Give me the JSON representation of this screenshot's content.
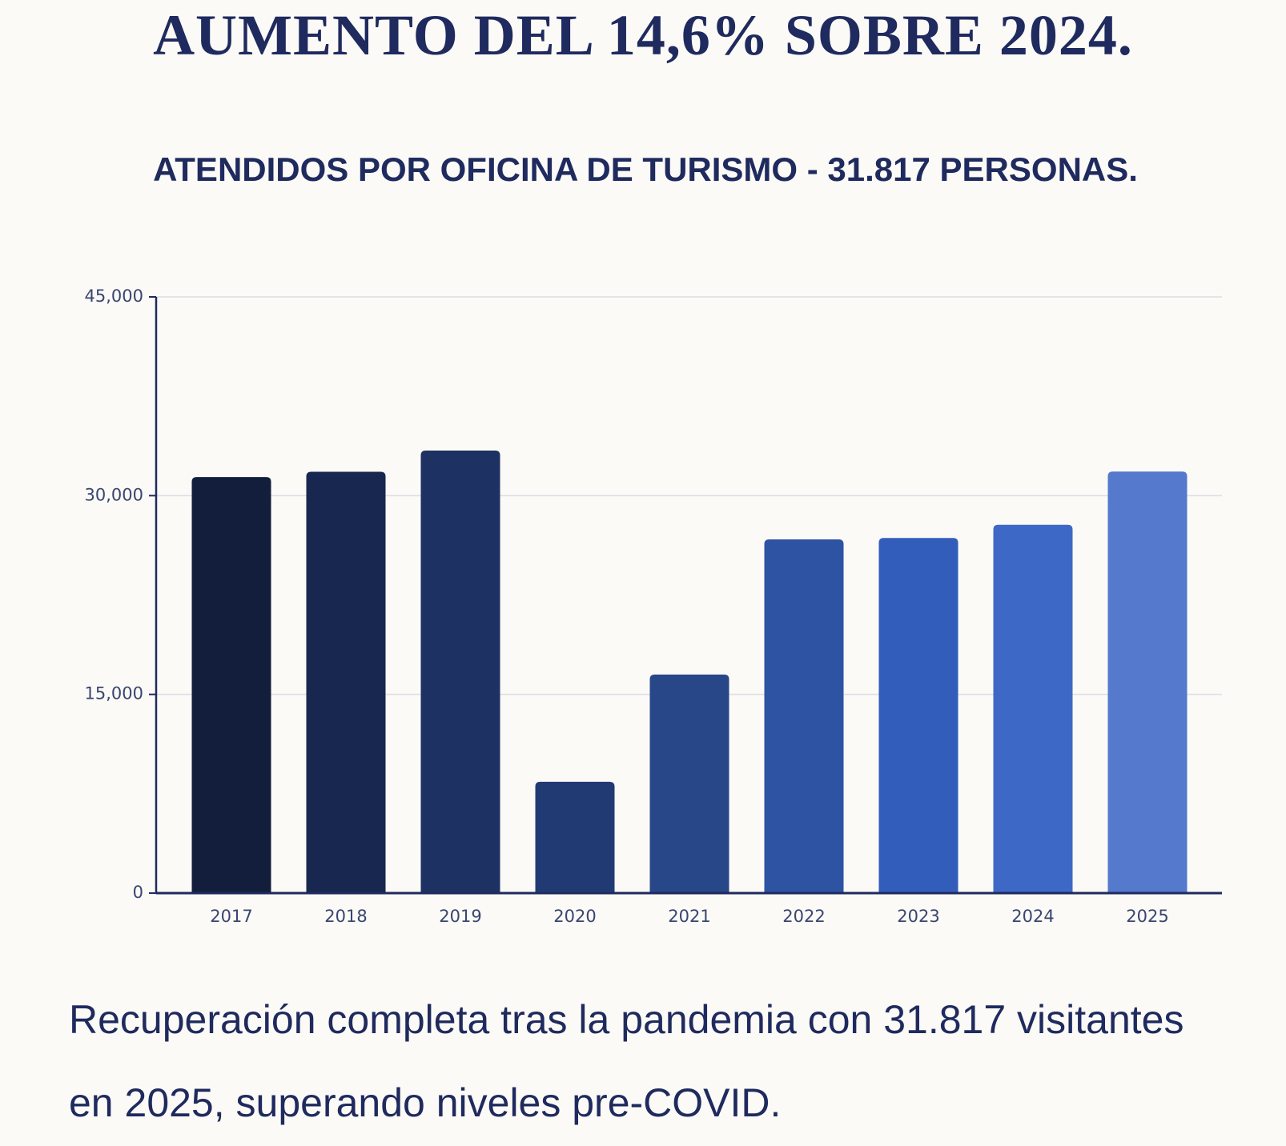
{
  "chart_data": {
    "type": "bar",
    "title": "AUMENTO DEL 14,6% SOBRE 2024.",
    "subtitle": "ATENDIDOS POR OFICINA DE TURISMO - 31.817 PERSONAS.",
    "caption": "Recuperación completa tras la pandemia con 31.817 visitantes en 2025, superando niveles pre-COVID.",
    "categories": [
      "2017",
      "2018",
      "2019",
      "2020",
      "2021",
      "2022",
      "2023",
      "2024",
      "2025"
    ],
    "values": [
      31400,
      31800,
      33400,
      8400,
      16500,
      26700,
      26800,
      27800,
      31817
    ],
    "colors": [
      "#121e3b",
      "#17274f",
      "#1d3263",
      "#223a74",
      "#284789",
      "#2d53a2",
      "#335dbb",
      "#3d68c6",
      "#5479cd"
    ],
    "ylim": [
      0,
      45000
    ],
    "yticks": [
      0,
      {
        "value": 15000,
        "label": "15,000"
      },
      {
        "value": 30000,
        "label": "30,000"
      },
      {
        "value": 45000,
        "label": "45,000"
      }
    ],
    "grid": true
  }
}
